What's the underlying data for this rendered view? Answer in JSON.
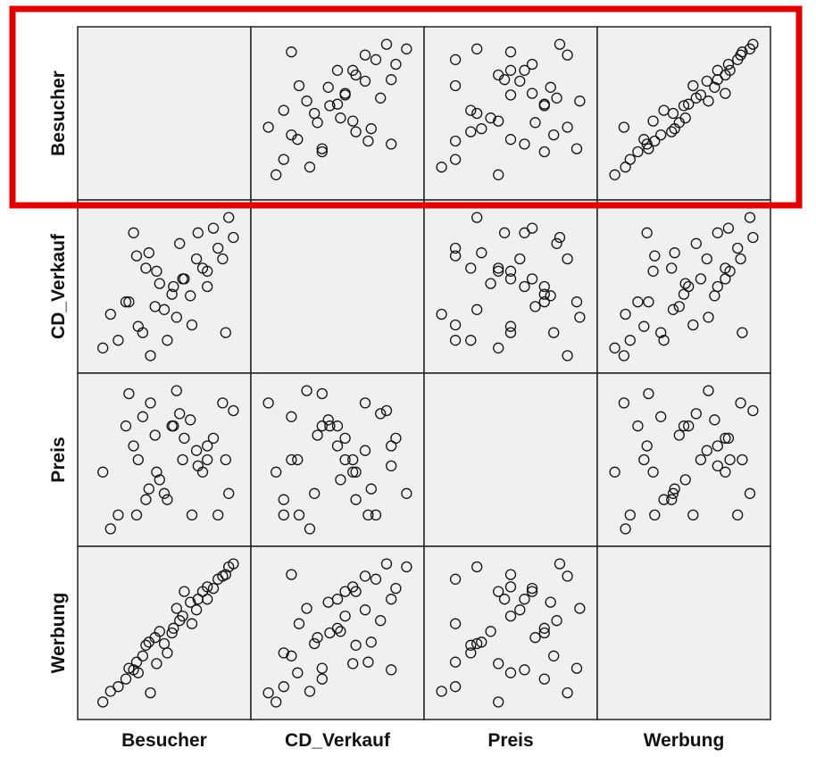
{
  "chart_data": {
    "type": "scatter",
    "kind": "scatterplot-matrix",
    "variables": [
      "Besucher",
      "CD_Verkauf",
      "Preis",
      "Werbung"
    ],
    "diagonal": "empty",
    "grid": false,
    "highlight": {
      "target": "row",
      "variable": "Besucher",
      "color": "#e00000"
    },
    "observations": [
      {
        "Besucher": 0.68,
        "CD_Verkauf": 0.25,
        "Preis": 0.14,
        "Werbung": 0.56
      },
      {
        "Besucher": 0.95,
        "CD_Verkauf": 0.82,
        "Preis": 0.82,
        "Werbung": 0.95
      },
      {
        "Besucher": 0.92,
        "CD_Verkauf": 0.95,
        "Preis": 0.28,
        "Werbung": 0.93
      },
      {
        "Besucher": 0.41,
        "CD_Verkauf": 0.05,
        "Preis": 0.87,
        "Werbung": 0.11
      },
      {
        "Besucher": 0.2,
        "CD_Verkauf": 0.15,
        "Preis": 0.14,
        "Werbung": 0.15
      },
      {
        "Besucher": 0.55,
        "CD_Verkauf": 0.45,
        "Preis": 0.72,
        "Werbung": 0.5
      },
      {
        "Besucher": 0.75,
        "CD_Verkauf": 0.62,
        "Preis": 0.42,
        "Werbung": 0.77
      },
      {
        "Besucher": 0.3,
        "CD_Verkauf": 0.85,
        "Preis": 0.59,
        "Werbung": 0.26
      },
      {
        "Besucher": 0.5,
        "CD_Verkauf": 0.35,
        "Preis": 0.28,
        "Werbung": 0.43
      },
      {
        "Besucher": 0.36,
        "CD_Verkauf": 0.2,
        "Preis": 0.78,
        "Werbung": 0.35
      },
      {
        "Besucher": 0.85,
        "CD_Verkauf": 0.75,
        "Preis": 0.14,
        "Werbung": 0.85
      },
      {
        "Besucher": 0.88,
        "CD_Verkauf": 0.68,
        "Preis": 0.87,
        "Werbung": 0.87
      },
      {
        "Besucher": 0.62,
        "CD_Verkauf": 0.55,
        "Preis": 0.5,
        "Werbung": 0.61
      },
      {
        "Besucher": 0.25,
        "CD_Verkauf": 0.4,
        "Preis": 0.72,
        "Werbung": 0.2
      },
      {
        "Besucher": 0.45,
        "CD_Verkauf": 0.6,
        "Preis": 0.42,
        "Werbung": 0.3
      },
      {
        "Besucher": 0.78,
        "CD_Verkauf": 0.5,
        "Preis": 0.59,
        "Werbung": 0.72
      },
      {
        "Besucher": 0.58,
        "CD_Verkauf": 0.3,
        "Preis": 0.95,
        "Werbung": 0.66
      },
      {
        "Besucher": 0.1,
        "CD_Verkauf": 0.1,
        "Preis": 0.42,
        "Werbung": 0.05
      },
      {
        "Besucher": 0.4,
        "CD_Verkauf": 0.72,
        "Preis": 0.31,
        "Werbung": 0.44
      },
      {
        "Besucher": 0.67,
        "CD_Verkauf": 0.44,
        "Preis": 0.76,
        "Werbung": 0.7
      },
      {
        "Besucher": 0.33,
        "CD_Verkauf": 0.24,
        "Preis": 0.5,
        "Werbung": 0.24
      },
      {
        "Besucher": 0.82,
        "CD_Verkauf": 0.88,
        "Preis": 0.64,
        "Werbung": 0.79
      },
      {
        "Besucher": 0.52,
        "CD_Verkauf": 0.15,
        "Preis": 0.24,
        "Werbung": 0.37
      },
      {
        "Besucher": 0.71,
        "CD_Verkauf": 0.68,
        "Preis": 0.56,
        "Werbung": 0.65
      },
      {
        "Besucher": 0.15,
        "CD_Verkauf": 0.32,
        "Preis": 0.05,
        "Werbung": 0.12
      },
      {
        "Besucher": 0.47,
        "CD_Verkauf": 0.52,
        "Preis": 0.37,
        "Werbung": 0.51
      },
      {
        "Besucher": 0.6,
        "CD_Verkauf": 0.78,
        "Preis": 0.8,
        "Werbung": 0.58
      },
      {
        "Besucher": 0.27,
        "CD_Verkauf": 0.4,
        "Preis": 0.93,
        "Werbung": 0.27
      },
      {
        "Besucher": 0.63,
        "CD_Verkauf": 0.55,
        "Preis": 0.64,
        "Werbung": 0.77
      },
      {
        "Besucher": 0.38,
        "CD_Verkauf": 0.62,
        "Preis": 0.24,
        "Werbung": 0.42
      },
      {
        "Besucher": 0.9,
        "CD_Verkauf": 0.2,
        "Preis": 0.5,
        "Werbung": 0.88
      },
      {
        "Besucher": 0.72,
        "CD_Verkauf": 0.85,
        "Preis": 0.46,
        "Werbung": 0.72
      },
      {
        "Besucher": 0.56,
        "CD_Verkauf": 0.5,
        "Preis": 0.72,
        "Werbung": 0.53
      },
      {
        "Besucher": 0.32,
        "CD_Verkauf": 0.7,
        "Preis": 0.14,
        "Werbung": 0.31
      },
      {
        "Besucher": 0.78,
        "CD_Verkauf": 0.6,
        "Preis": 0.5,
        "Werbung": 0.8
      },
      {
        "Besucher": 0.44,
        "CD_Verkauf": 0.37,
        "Preis": 0.66,
        "Werbung": 0.47
      }
    ]
  }
}
